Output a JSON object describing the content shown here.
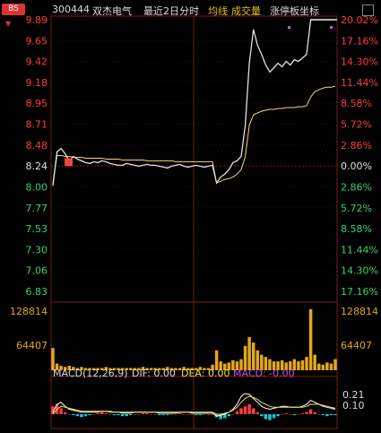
{
  "header": {
    "badge": "BS",
    "stock_code": "300444",
    "stock_name": "双杰电气",
    "period_label": "最近2日分时",
    "overlay_text_1": "均线",
    "overlay_text_2": "成交量",
    "limit_label": "涨停板坐标"
  },
  "price_axis": {
    "left": [
      "9.89",
      "9.65",
      "9.42",
      "9.18",
      "8.95",
      "8.71",
      "8.48",
      "8.24",
      "8.00",
      "7.77",
      "7.53",
      "7.30",
      "7.06",
      "6.83"
    ],
    "right": [
      "20.02%",
      "17.16%",
      "14.30%",
      "11.44%",
      "8.58%",
      "5.72%",
      "2.86%",
      "0.00%",
      "2.86%",
      "5.72%",
      "8.58%",
      "11.44%",
      "14.30%",
      "17.16%"
    ]
  },
  "volume_axis": {
    "max": "128814",
    "mid": "64407"
  },
  "macd": {
    "label": "MACD(12,26,9)",
    "dif": "DIF: 0.00",
    "dea": "DEA: 0.00",
    "macd": "MACD: -0.00",
    "axis_top": "0.21",
    "axis_mid": "0.10"
  },
  "colors": {
    "up": "#ff3b3b",
    "down": "#3bd16f",
    "neutral": "#e0e0e0",
    "avg_line": "#f0e060",
    "volume": "#e3a71a",
    "macd_neg": "#19c8d8",
    "dea_line": "#f0e060",
    "macd_line": "#d050e0"
  },
  "chart_data": {
    "type": "line",
    "prev_close": 8.24,
    "ylim": [
      6.83,
      9.89
    ],
    "series": [
      {
        "values": [
          8.02,
          8.4,
          8.44,
          8.38,
          8.3,
          8.35,
          8.32,
          8.3,
          8.28,
          8.27,
          8.29,
          8.28,
          8.3,
          8.29,
          8.27,
          8.26,
          8.25,
          8.25,
          8.27,
          8.26,
          8.25,
          8.24,
          8.25,
          8.26,
          8.25,
          8.25,
          8.24,
          8.23,
          8.22,
          8.24,
          8.25,
          8.26,
          8.24,
          8.23,
          8.24,
          8.25,
          8.24,
          8.23,
          8.24,
          8.25,
          8.05,
          8.12,
          8.15,
          8.2,
          8.28,
          8.3,
          8.35,
          8.7,
          9.4,
          9.78,
          9.6,
          9.5,
          9.38,
          9.3,
          9.35,
          9.4,
          9.36,
          9.42,
          9.38,
          9.44,
          9.42,
          9.46,
          9.5,
          9.89,
          9.89,
          9.89,
          9.89,
          9.89,
          9.89,
          9.89
        ]
      },
      {
        "values": [
          8.05,
          8.36,
          8.36,
          8.35,
          8.35,
          8.34,
          8.34,
          8.34,
          8.33,
          8.33,
          8.33,
          8.33,
          8.33,
          8.32,
          8.32,
          8.32,
          8.32,
          8.31,
          8.31,
          8.31,
          8.31,
          8.31,
          8.31,
          8.3,
          8.3,
          8.3,
          8.3,
          8.3,
          8.3,
          8.3,
          8.29,
          8.29,
          8.29,
          8.29,
          8.29,
          8.29,
          8.29,
          8.29,
          8.29,
          8.29,
          8.05,
          8.07,
          8.09,
          8.1,
          8.12,
          8.15,
          8.2,
          8.35,
          8.7,
          8.82,
          8.84,
          8.86,
          8.87,
          8.88,
          8.88,
          8.89,
          8.89,
          8.9,
          8.9,
          8.9,
          8.91,
          8.91,
          8.92,
          9.02,
          9.08,
          9.1,
          9.12,
          9.13,
          9.13,
          9.14
        ]
      }
    ],
    "volume": [
      20,
      6,
      4,
      3,
      4,
      3,
      2,
      3,
      2,
      2,
      2,
      2,
      2,
      3,
      2,
      2,
      2,
      2,
      2,
      2,
      2,
      2,
      3,
      2,
      2,
      2,
      2,
      2,
      3,
      2,
      2,
      2,
      3,
      2,
      2,
      2,
      3,
      2,
      2,
      5,
      18,
      8,
      6,
      7,
      9,
      8,
      10,
      22,
      30,
      25,
      18,
      14,
      12,
      10,
      8,
      8,
      9,
      7,
      8,
      10,
      8,
      9,
      12,
      55,
      14,
      6,
      5,
      7,
      6,
      10
    ],
    "macd_bars": [
      0.08,
      0.1,
      0.06,
      0.02,
      0.0,
      -0.01,
      -0.02,
      -0.03,
      -0.02,
      -0.01,
      0.0,
      0.01,
      0.02,
      0.01,
      0.0,
      -0.01,
      -0.01,
      -0.02,
      -0.02,
      -0.01,
      0.0,
      0.0,
      0.01,
      0.01,
      0.0,
      0.0,
      -0.01,
      -0.01,
      -0.01,
      0.0,
      0.0,
      0.01,
      0.0,
      0.0,
      0.0,
      -0.01,
      -0.01,
      0.0,
      0.0,
      0.0,
      -0.03,
      -0.05,
      -0.04,
      -0.02,
      0.0,
      0.03,
      0.06,
      0.08,
      0.1,
      0.06,
      0.02,
      -0.02,
      -0.05,
      -0.06,
      -0.04,
      -0.02,
      0.0,
      0.01,
      0.0,
      -0.01,
      0.0,
      0.01,
      0.02,
      0.05,
      0.02,
      0.0,
      -0.01,
      -0.02,
      -0.01,
      -0.01
    ],
    "dif": [
      0.02,
      0.1,
      0.12,
      0.08,
      0.05,
      0.04,
      0.03,
      0.02,
      0.02,
      0.02,
      0.02,
      0.02,
      0.03,
      0.03,
      0.02,
      0.02,
      0.02,
      0.01,
      0.01,
      0.01,
      0.02,
      0.02,
      0.02,
      0.02,
      0.02,
      0.02,
      0.01,
      0.01,
      0.01,
      0.01,
      0.01,
      0.02,
      0.02,
      0.02,
      0.01,
      0.01,
      0.01,
      0.01,
      0.01,
      0.01,
      -0.02,
      -0.01,
      0.0,
      0.02,
      0.05,
      0.1,
      0.18,
      0.21,
      0.2,
      0.16,
      0.12,
      0.08,
      0.06,
      0.05,
      0.06,
      0.07,
      0.08,
      0.08,
      0.07,
      0.07,
      0.07,
      0.08,
      0.1,
      0.14,
      0.12,
      0.1,
      0.08,
      0.07,
      0.06,
      0.05
    ],
    "dea": [
      0.0,
      0.05,
      0.08,
      0.07,
      0.06,
      0.05,
      0.04,
      0.03,
      0.03,
      0.03,
      0.03,
      0.03,
      0.03,
      0.03,
      0.03,
      0.02,
      0.02,
      0.02,
      0.02,
      0.02,
      0.02,
      0.02,
      0.02,
      0.02,
      0.02,
      0.02,
      0.02,
      0.02,
      0.02,
      0.02,
      0.02,
      0.02,
      0.02,
      0.02,
      0.02,
      0.02,
      0.02,
      0.02,
      0.02,
      0.02,
      0.0,
      0.0,
      0.01,
      0.02,
      0.04,
      0.07,
      0.12,
      0.16,
      0.18,
      0.17,
      0.15,
      0.12,
      0.1,
      0.08,
      0.07,
      0.07,
      0.07,
      0.07,
      0.07,
      0.07,
      0.07,
      0.07,
      0.08,
      0.1,
      0.1,
      0.1,
      0.09,
      0.08,
      0.07,
      0.06
    ]
  }
}
